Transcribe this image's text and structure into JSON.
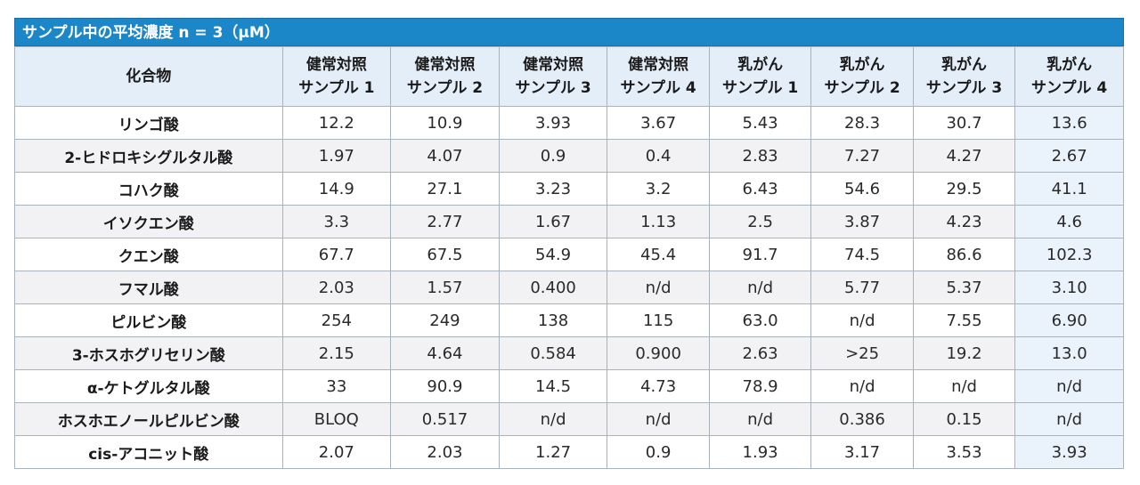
{
  "title": "サンプル中の平均濃度 n = 3（μM）",
  "header": {
    "compound": "化合物",
    "columns": [
      {
        "line1": "健常対照",
        "line2": "サンプル 1"
      },
      {
        "line1": "健常対照",
        "line2": "サンプル 2"
      },
      {
        "line1": "健常対照",
        "line2": "サンプル 3"
      },
      {
        "line1": "健常対照",
        "line2": "サンプル 4"
      },
      {
        "line1": "乳がん",
        "line2": "サンプル 1"
      },
      {
        "line1": "乳がん",
        "line2": "サンプル 2"
      },
      {
        "line1": "乳がん",
        "line2": "サンプル 3"
      },
      {
        "line1": "乳がん",
        "line2": "サンプル 4"
      }
    ]
  },
  "rows": [
    {
      "name": "リンゴ酸",
      "values": [
        "12.2",
        "10.9",
        "3.93",
        "3.67",
        "5.43",
        "28.3",
        "30.7",
        "13.6"
      ]
    },
    {
      "name": "2-ヒドロキシグルタル酸",
      "values": [
        "1.97",
        "4.07",
        "0.9",
        "0.4",
        "2.83",
        "7.27",
        "4.27",
        "2.67"
      ]
    },
    {
      "name": "コハク酸",
      "values": [
        "14.9",
        "27.1",
        "3.23",
        "3.2",
        "6.43",
        "54.6",
        "29.5",
        "41.1"
      ]
    },
    {
      "name": "イソクエン酸",
      "values": [
        "3.3",
        "2.77",
        "1.67",
        "1.13",
        "2.5",
        "3.87",
        "4.23",
        "4.6"
      ]
    },
    {
      "name": "クエン酸",
      "values": [
        "67.7",
        "67.5",
        "54.9",
        "45.4",
        "91.7",
        "74.5",
        "86.6",
        "102.3"
      ]
    },
    {
      "name": "フマル酸",
      "values": [
        "2.03",
        "1.57",
        "0.400",
        "n/d",
        "n/d",
        "5.77",
        "5.37",
        "3.10"
      ]
    },
    {
      "name": "ピルビン酸",
      "values": [
        "254",
        "249",
        "138",
        "115",
        "63.0",
        "n/d",
        "7.55",
        "6.90"
      ]
    },
    {
      "name": "3-ホスホグリセリン酸",
      "values": [
        "2.15",
        "4.64",
        "0.584",
        "0.900",
        "2.63",
        ">25",
        "19.2",
        "13.0"
      ]
    },
    {
      "name": "α-ケトグルタル酸",
      "values": [
        "33",
        "90.9",
        "14.5",
        "4.73",
        "78.9",
        "n/d",
        "n/d",
        "n/d"
      ]
    },
    {
      "name": "ホスホエノールピルビン酸",
      "values": [
        "BLOQ",
        "0.517",
        "n/d",
        "n/d",
        "n/d",
        "0.386",
        "0.15",
        "n/d"
      ]
    },
    {
      "name": "cis-アコニット酸",
      "values": [
        "2.07",
        "2.03",
        "1.27",
        "0.9",
        "1.93",
        "3.17",
        "3.53",
        "3.93"
      ]
    }
  ]
}
